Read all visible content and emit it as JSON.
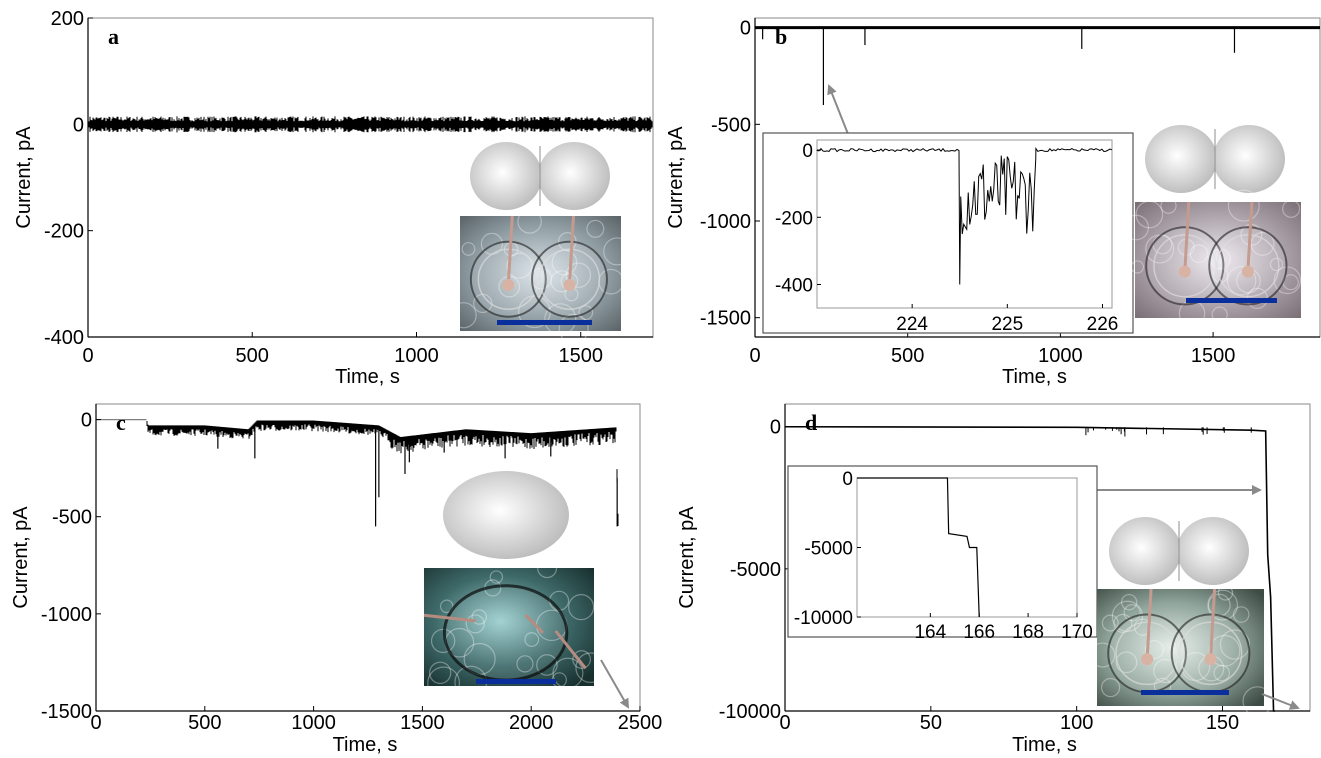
{
  "figure": {
    "panels": [
      {
        "id": "a",
        "label": "a",
        "xlabel": "Time, s",
        "ylabel": "Current, pA"
      },
      {
        "id": "b",
        "label": "b",
        "xlabel": "Time, s",
        "ylabel": "Current, pA"
      },
      {
        "id": "c",
        "label": "c",
        "xlabel": "Time, s",
        "ylabel": "Current, pA"
      },
      {
        "id": "d",
        "label": "d",
        "xlabel": "Time, s",
        "ylabel": "Current, pA"
      }
    ]
  },
  "chart_data": [
    {
      "type": "line",
      "panel": "a",
      "title": "",
      "xlabel": "Time, s",
      "ylabel": "Current, pA",
      "xlim": [
        0,
        1720
      ],
      "ylim": [
        -400,
        200
      ],
      "xticks": [
        0,
        500,
        1000,
        1500
      ],
      "yticks": [
        -400,
        -200,
        0,
        200
      ],
      "series": [
        {
          "x": [
            0,
            200,
            400,
            600,
            800,
            1000,
            1200,
            1400,
            1600,
            1720
          ],
          "y": [
            0,
            0,
            0,
            0,
            0,
            0,
            0,
            0,
            0,
            0
          ],
          "noise_amplitude": 8
        }
      ],
      "inset_image": {
        "schematic": "two contacting spheres",
        "photo": "two droplets",
        "scale_bar_color": "#0a2e9c"
      }
    },
    {
      "type": "line",
      "panel": "b",
      "title": "",
      "xlabel": "Time, s",
      "ylabel": "Current, pA",
      "xlim": [
        0,
        1850
      ],
      "ylim": [
        -1600,
        50
      ],
      "xticks": [
        0,
        500,
        1000,
        1500
      ],
      "yticks": [
        -1500,
        -1000,
        -500,
        0
      ],
      "series": [
        {
          "x": [
            0,
            1850
          ],
          "y": [
            0,
            0
          ],
          "spikes": [
            [
              25,
              -60
            ],
            [
              224,
              -400
            ],
            [
              360,
              -90
            ],
            [
              1070,
              -110
            ],
            [
              1570,
              -130
            ]
          ]
        }
      ],
      "inset": {
        "xlim": [
          223.0,
          226.1
        ],
        "ylim": [
          -470,
          30
        ],
        "xticks": [
          224,
          225,
          226
        ],
        "yticks": [
          -400,
          -200,
          0
        ],
        "events": [
          {
            "start": 224.5,
            "end": 225.3,
            "min": -400,
            "mean": -130
          }
        ]
      },
      "inset_image": {
        "schematic": "two contacting spheres",
        "photo": "two droplets",
        "scale_bar_color": "#0a2e9c"
      }
    },
    {
      "type": "line",
      "panel": "c",
      "title": "",
      "xlabel": "Time, s",
      "ylabel": "Current, pA",
      "xlim": [
        0,
        2500
      ],
      "ylim": [
        -1500,
        80
      ],
      "xticks": [
        0,
        500,
        1000,
        1500,
        2000,
        2500
      ],
      "yticks": [
        -1500,
        -1000,
        -500,
        0
      ],
      "series": [
        {
          "x": [
            0,
            230,
            240,
            500,
            700,
            740,
            1000,
            1300,
            1400,
            1700,
            2000,
            2390,
            2400
          ],
          "y": [
            0,
            0,
            -40,
            -40,
            -60,
            -15,
            -15,
            -40,
            -100,
            -60,
            -80,
            -50,
            -550
          ],
          "spikes": [
            [
              560,
              -150
            ],
            [
              730,
              -200
            ],
            [
              1285,
              -550
            ],
            [
              1300,
              -400
            ],
            [
              1420,
              -280
            ],
            [
              1440,
              -220
            ],
            [
              1600,
              -170
            ],
            [
              1880,
              -200
            ],
            [
              2090,
              -190
            ],
            [
              2395,
              -550
            ]
          ]
        }
      ],
      "inset_image": {
        "schematic": "single ellipsoid",
        "photo": "single droplet",
        "scale_bar_color": "#0a2e9c"
      }
    },
    {
      "type": "line",
      "panel": "d",
      "title": "",
      "xlabel": "Time, s",
      "ylabel": "Current, pA",
      "xlim": [
        0,
        180
      ],
      "ylim": [
        -10000,
        800
      ],
      "xticks": [
        0,
        50,
        100,
        150
      ],
      "yticks": [
        -10000,
        -5000,
        0
      ],
      "series": [
        {
          "x": [
            0,
            100,
            160,
            164.8,
            165.5,
            166.5,
            167.5,
            168
          ],
          "y": [
            0,
            -20,
            -120,
            -150,
            -4500,
            -6000,
            -10000,
            -10000
          ]
        }
      ],
      "inset": {
        "xlim": [
          161,
          170
        ],
        "ylim": [
          -10000,
          0
        ],
        "xticks": [
          164,
          166,
          168,
          170
        ],
        "yticks": [
          -10000,
          -5000,
          0
        ],
        "series": {
          "x": [
            161,
            164.7,
            164.75,
            165.5,
            165.6,
            165.9,
            166.0
          ],
          "y": [
            0,
            0,
            -4000,
            -4200,
            -5000,
            -5000,
            -10000
          ]
        }
      },
      "inset_image": {
        "schematic": "two contacting spheres",
        "photo": "two droplets",
        "scale_bar_color": "#0a2e9c"
      }
    }
  ]
}
